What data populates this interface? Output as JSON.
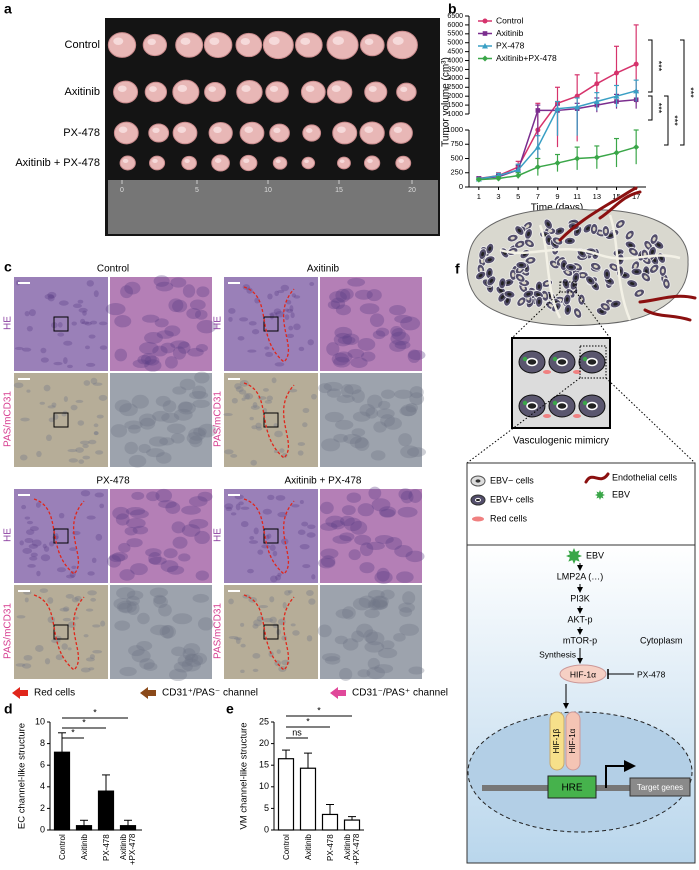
{
  "panel_labels": [
    "a",
    "b",
    "c",
    "d",
    "e",
    "f"
  ],
  "photo": {
    "row_labels": [
      "Control",
      "Axitinib",
      "PX-478",
      "Axitinib + PX-478"
    ],
    "ruler_labels": [
      "0",
      "5",
      "10",
      "15",
      "20"
    ]
  },
  "micrographs": {
    "columns": [
      "Control",
      "Axitinib",
      "PX-478",
      "Axitinib + PX-478"
    ],
    "row_labels": [
      "HE",
      "PAS/mCD31"
    ],
    "legend": [
      "Red cells",
      "CD31⁺/PAS⁻ channel",
      "CD31⁻/PAS⁺ channel"
    ]
  },
  "diagram": {
    "zoom_label": "Vasculogenic mimicry",
    "legend": [
      "EBV− cells",
      "EBV+ cells",
      "Red cells",
      "Endothelial cells",
      "EBV"
    ],
    "pathway": {
      "nodes": [
        "EBV",
        "LMP2A (…)",
        "PI3K",
        "AKT-p",
        "mTOR-p",
        "HIF-1α"
      ],
      "synthesis": "Synthesis",
      "cytoplasm": "Cytoplasm",
      "inhibitor": "PX-478",
      "nucleus": [
        "HIF-1β",
        "HIF-1α",
        "HRE",
        "Target genes"
      ]
    }
  },
  "chart_data": [
    {
      "type": "line",
      "xlabel": "Time (days)",
      "ylabel": "Tumor volume (cm³)",
      "x": [
        1,
        3,
        5,
        7,
        9,
        11,
        13,
        15,
        17
      ],
      "xlim": [
        0,
        18
      ],
      "xticks": [
        1,
        3,
        5,
        7,
        9,
        11,
        13,
        15,
        17
      ],
      "ylim_lower": [
        0,
        1000
      ],
      "yticks_lower": [
        0,
        250,
        500,
        750,
        1000
      ],
      "ylim_upper": [
        1000,
        6500
      ],
      "yticks_upper": [
        1000,
        1500,
        2000,
        2500,
        3000,
        3500,
        4000,
        4500,
        5000,
        5500,
        6000,
        6500
      ],
      "legend": "upper left",
      "series": [
        {
          "name": "Control",
          "color": "#d6336c",
          "marker": "circle",
          "values": [
            150,
            200,
            350,
            1000,
            1600,
            2000,
            2700,
            3300,
            3800
          ],
          "errors": [
            30,
            50,
            100,
            600,
            900,
            1200,
            600,
            1500,
            2200
          ]
        },
        {
          "name": "Axitinib",
          "color": "#7b2d8e",
          "marker": "square",
          "values": [
            150,
            180,
            300,
            1200,
            1200,
            1300,
            1500,
            1700,
            1800
          ],
          "errors": [
            20,
            40,
            80,
            300,
            300,
            300,
            400,
            400,
            500
          ]
        },
        {
          "name": "PX-478",
          "color": "#3a9fc4",
          "marker": "triangle",
          "values": [
            140,
            200,
            300,
            700,
            1300,
            1400,
            1700,
            2000,
            2300
          ],
          "errors": [
            20,
            40,
            100,
            200,
            400,
            500,
            500,
            600,
            600
          ]
        },
        {
          "name": "Axitinib+PX-478",
          "color": "#3aa648",
          "marker": "diamond",
          "values": [
            130,
            150,
            200,
            350,
            420,
            500,
            520,
            600,
            700
          ],
          "errors": [
            20,
            30,
            50,
            150,
            150,
            200,
            200,
            250,
            300
          ]
        }
      ],
      "annotations": [
        "***",
        "***",
        "***",
        "***"
      ]
    },
    {
      "type": "bar",
      "ylabel": "EC channel-like structure",
      "categories": [
        "Control",
        "Axitinib",
        "PX-478",
        "Axitinib +PX-478"
      ],
      "values": [
        7.2,
        0.4,
        3.6,
        0.4
      ],
      "errors": [
        1.8,
        0.5,
        1.5,
        0.5
      ],
      "color": "#000000",
      "edgecolor": "#000000",
      "ylim": [
        0,
        10
      ],
      "yticks": [
        0,
        2,
        4,
        6,
        8,
        10
      ],
      "annotations": [
        "*",
        "*",
        "*"
      ]
    },
    {
      "type": "bar",
      "ylabel": "VM channel-like structure",
      "categories": [
        "Control",
        "Axitinib",
        "PX-478",
        "Axitinib +PX-478"
      ],
      "values": [
        16.5,
        14.3,
        3.6,
        2.3
      ],
      "errors": [
        2,
        3.5,
        2.3,
        0.8
      ],
      "color": "#ffffff",
      "edgecolor": "#000000",
      "ylim": [
        0,
        25
      ],
      "yticks": [
        0,
        5,
        10,
        15,
        20,
        25
      ],
      "annotations": [
        "ns",
        "*",
        "*"
      ]
    }
  ]
}
